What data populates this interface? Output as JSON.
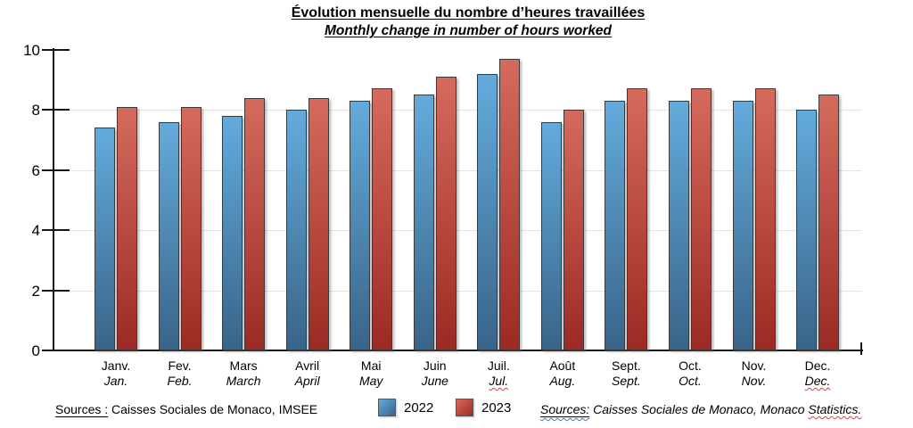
{
  "chart_data": {
    "type": "bar",
    "title_fr": "Évolution mensuelle du nombre d’heures travaillées",
    "title_en": "Monthly change in number of hours worked",
    "categories_fr": [
      "Janv.",
      "Fev.",
      "Mars",
      "Avril",
      "Mai",
      "Juin",
      "Juil.",
      "Août",
      "Sept.",
      "Oct.",
      "Nov.",
      "Dec."
    ],
    "categories_en": [
      "Jan.",
      "Feb.",
      "March",
      "April",
      "May",
      "June",
      "Jul.",
      "Aug.",
      "Sept.",
      "Oct.",
      "Nov.",
      "Dec."
    ],
    "spellcheck_en_indices": [
      6,
      11
    ],
    "series": [
      {
        "name": "2022",
        "values": [
          7.4,
          7.6,
          7.8,
          8.0,
          8.3,
          8.5,
          9.2,
          7.6,
          8.3,
          8.3,
          8.3,
          8.0
        ],
        "color_top": "#63abdc",
        "color_bottom": "#396489",
        "border": "#3a3a3a"
      },
      {
        "name": "2023",
        "values": [
          8.1,
          8.1,
          8.4,
          8.4,
          8.7,
          9.1,
          9.7,
          8.0,
          8.7,
          8.7,
          8.7,
          8.5
        ],
        "color_top": "#d56a5e",
        "color_bottom": "#9c2a24",
        "border": "#3a3a3a"
      }
    ],
    "ylim": [
      0,
      10
    ],
    "y_ticks": [
      0,
      2,
      4,
      6,
      8,
      10
    ],
    "grid_values": [
      2,
      4,
      6,
      8
    ],
    "grid": true,
    "legend_position": "bottom-center"
  },
  "legend": [
    {
      "label": "2022",
      "color_top": "#63abdc",
      "color_bottom": "#396489"
    },
    {
      "label": "2023",
      "color_top": "#d56a5e",
      "color_bottom": "#9c2a24"
    }
  ],
  "sources_left": {
    "label": "Sources :",
    "text": " Caisses Sociales de Monaco, IMSEE"
  },
  "sources_right": {
    "label": "Sources:",
    "text": " Caisses Sociales de Monaco, Monaco ",
    "flagged_word": "Statistics."
  }
}
